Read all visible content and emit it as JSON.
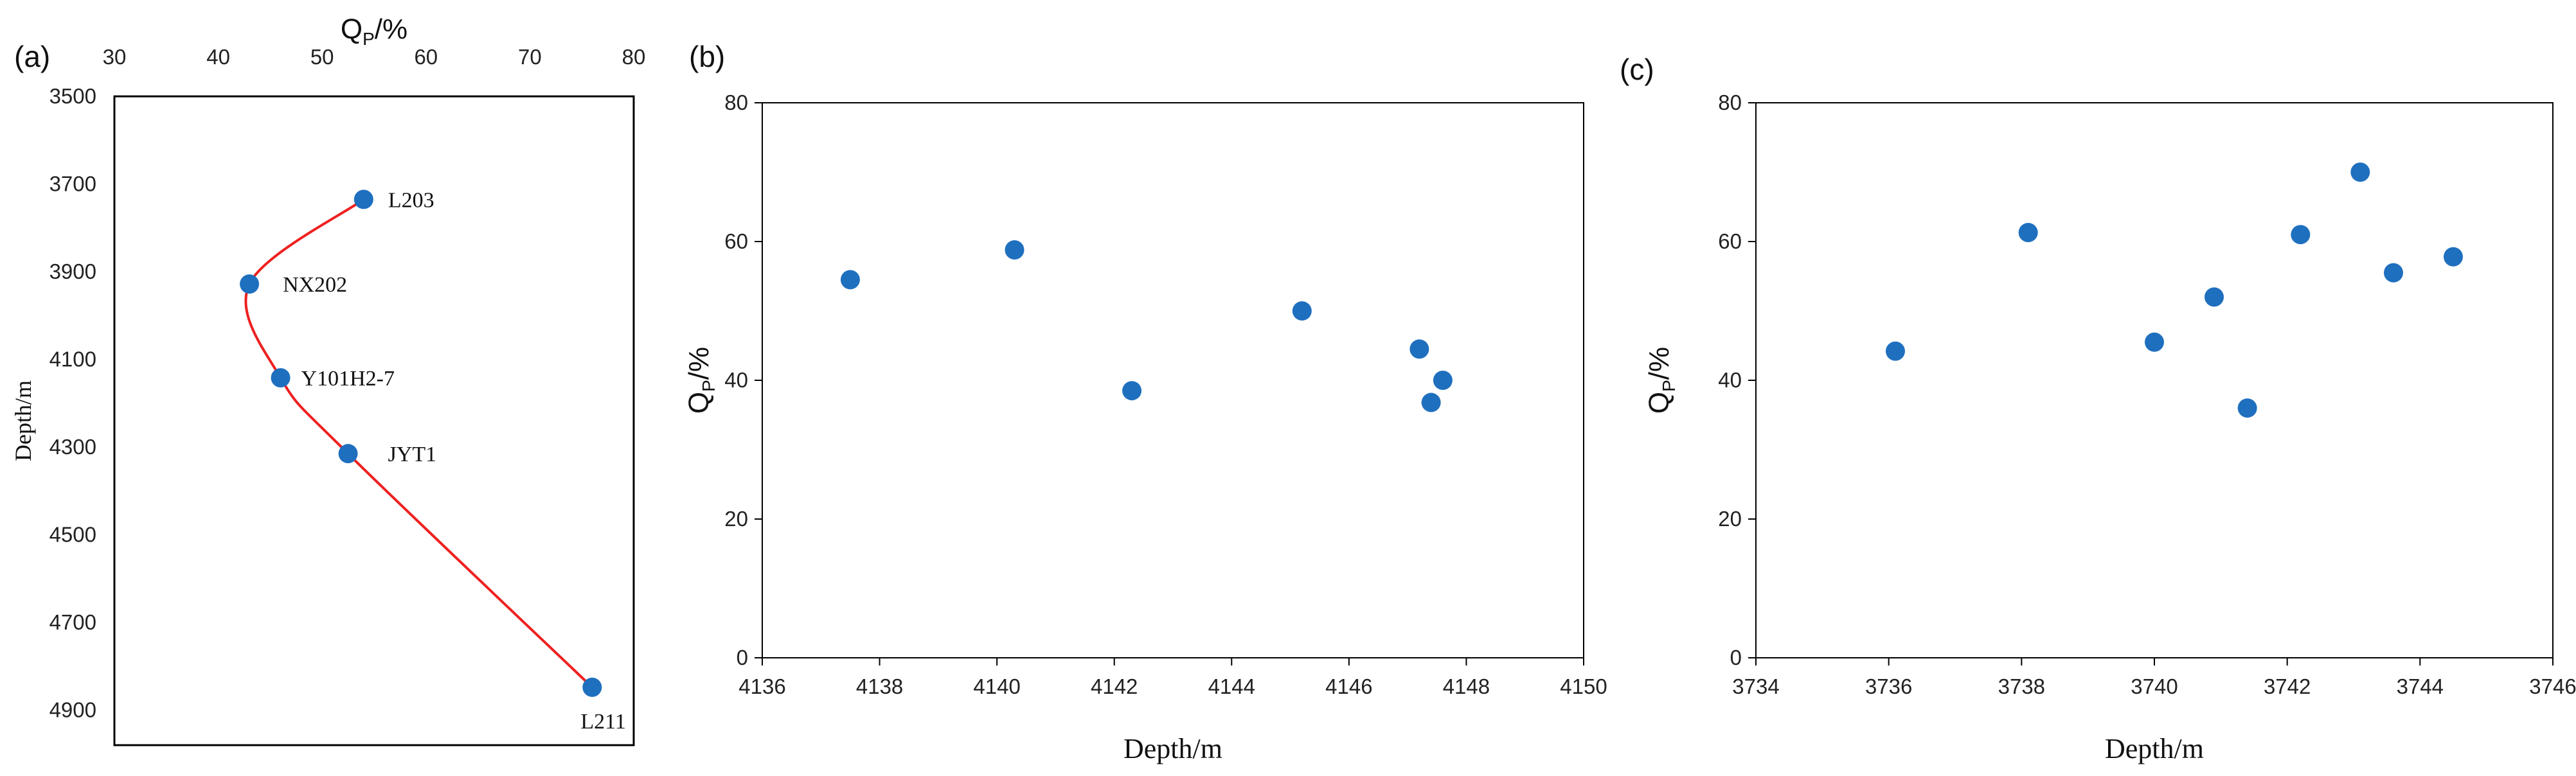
{
  "chart_data": [
    {
      "panel": "(a)",
      "type": "scatter",
      "x_axis_position": "top",
      "xlabel_main": "Q",
      "xlabel_sub": "P",
      "xlabel_tail": "/%",
      "ylabel": "Depth/m",
      "xlim": [
        30,
        80
      ],
      "ylim": [
        3500,
        4980
      ],
      "y_inverted": true,
      "xticks": [
        "30",
        "40",
        "50",
        "60",
        "70",
        "80"
      ],
      "yticks": [
        "3500",
        "3700",
        "3900",
        "4100",
        "4300",
        "4500",
        "4700",
        "4900"
      ],
      "points": [
        {
          "label": "L203",
          "qp": 54,
          "depth": 3735
        },
        {
          "label": "NX202",
          "qp": 43,
          "depth": 3928
        },
        {
          "label": "Y101H2-7",
          "qp": 46,
          "depth": 4142
        },
        {
          "label": "JYT1",
          "qp": 52.5,
          "depth": 4315
        },
        {
          "label": "L211",
          "qp": 76,
          "depth": 4848
        }
      ],
      "trend_curve_color": "#ee2020",
      "marker_color": "#1f6fbf",
      "grid": false
    },
    {
      "panel": "(b)",
      "type": "scatter",
      "xlabel": "Depth/m",
      "ylabel_main": "Q",
      "ylabel_sub": "P",
      "ylabel_tail": "/%",
      "xlim": [
        4136,
        4150
      ],
      "ylim": [
        0,
        80
      ],
      "xticks": [
        "4136",
        "4138",
        "4140",
        "4142",
        "4144",
        "4146",
        "4148",
        "4150"
      ],
      "yticks": [
        "0",
        "20",
        "40",
        "60",
        "80"
      ],
      "x": [
        4137.5,
        4140.3,
        4142.3,
        4145.2,
        4147.2,
        4147.4,
        4147.6
      ],
      "y": [
        54.5,
        58.8,
        38.5,
        50.0,
        44.5,
        36.8,
        40.0
      ],
      "marker_color": "#1f6fbf",
      "grid": false
    },
    {
      "panel": "(c)",
      "type": "scatter",
      "xlabel": "Depth/m",
      "ylabel_main": "Q",
      "ylabel_sub": "P",
      "ylabel_tail": "/%",
      "xlim": [
        3734,
        3746
      ],
      "ylim": [
        0,
        80
      ],
      "xticks": [
        "3734",
        "3736",
        "3738",
        "3740",
        "3742",
        "3744",
        "3746"
      ],
      "yticks": [
        "0",
        "20",
        "40",
        "60",
        "80"
      ],
      "x": [
        3736.1,
        3738.1,
        3740.0,
        3740.9,
        3741.4,
        3742.2,
        3743.1,
        3743.6,
        3744.5
      ],
      "y": [
        44.2,
        61.3,
        45.5,
        52.0,
        36.0,
        61.0,
        70.0,
        55.5,
        57.8
      ],
      "marker_color": "#1f6fbf",
      "grid": false
    }
  ]
}
